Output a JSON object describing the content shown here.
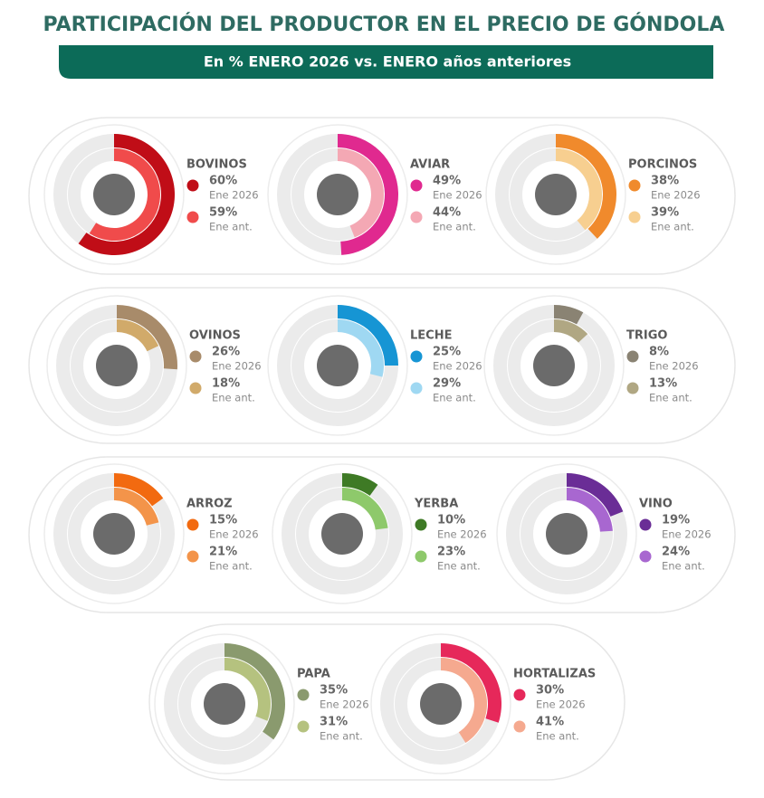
{
  "title": "PARTICIPACIÓN DEL PRODUCTOR EN EL PRECIO DE GÓNDOLA",
  "subtitle": "En % ENERO 2026 vs. ENERO años anteriores",
  "chart_data": [
    {
      "type": "radial",
      "title": "BOVINOS",
      "ylim": [
        0,
        100
      ],
      "series": [
        {
          "name": "Ene 2026",
          "color": "#c00d17",
          "values": [
            60
          ],
          "value_labels": [
            "60%"
          ]
        },
        {
          "name": "Ene ant.",
          "color": "#f04b4b",
          "values": [
            59
          ],
          "value_labels": [
            "59%"
          ]
        }
      ]
    },
    {
      "type": "radial",
      "title": "AVIAR",
      "ylim": [
        0,
        100
      ],
      "series": [
        {
          "name": "Ene 2026",
          "color": "#e0298f",
          "values": [
            49
          ],
          "value_labels": [
            "49%"
          ]
        },
        {
          "name": "Ene ant.",
          "color": "#f4a8b4",
          "values": [
            44
          ],
          "value_labels": [
            "44%"
          ]
        }
      ]
    },
    {
      "type": "radial",
      "title": "PORCINOS",
      "ylim": [
        0,
        100
      ],
      "series": [
        {
          "name": "Ene 2026",
          "color": "#f08a2c",
          "values": [
            38
          ],
          "value_labels": [
            "38%"
          ]
        },
        {
          "name": "Ene ant.",
          "color": "#f7cf90",
          "values": [
            39
          ],
          "value_labels": [
            "39%"
          ]
        }
      ]
    },
    {
      "type": "radial",
      "title": "OVINOS",
      "ylim": [
        0,
        100
      ],
      "series": [
        {
          "name": "Ene 2026",
          "color": "#a88b6a",
          "values": [
            26
          ],
          "value_labels": [
            "26%"
          ]
        },
        {
          "name": "Ene ant.",
          "color": "#d1aa6a",
          "values": [
            18
          ],
          "value_labels": [
            "18%"
          ]
        }
      ]
    },
    {
      "type": "radial",
      "title": "LECHE",
      "ylim": [
        0,
        100
      ],
      "series": [
        {
          "name": "Ene 2026",
          "color": "#1695d4",
          "values": [
            25
          ],
          "value_labels": [
            "25%"
          ]
        },
        {
          "name": "Ene ant.",
          "color": "#9fd8f2",
          "values": [
            29
          ],
          "value_labels": [
            "29%"
          ]
        }
      ]
    },
    {
      "type": "radial",
      "title": "TRIGO",
      "ylim": [
        0,
        100
      ],
      "series": [
        {
          "name": "Ene 2026",
          "color": "#8a8373",
          "values": [
            8
          ],
          "value_labels": [
            "8%"
          ]
        },
        {
          "name": "Ene ant.",
          "color": "#b0a783",
          "values": [
            13
          ],
          "value_labels": [
            "13%"
          ]
        }
      ]
    },
    {
      "type": "radial",
      "title": "ARROZ",
      "ylim": [
        0,
        100
      ],
      "series": [
        {
          "name": "Ene 2026",
          "color": "#f26a10",
          "values": [
            15
          ],
          "value_labels": [
            "15%"
          ]
        },
        {
          "name": "Ene ant.",
          "color": "#f3944a",
          "values": [
            21
          ],
          "value_labels": [
            "21%"
          ]
        }
      ]
    },
    {
      "type": "radial",
      "title": "YERBA",
      "ylim": [
        0,
        100
      ],
      "series": [
        {
          "name": "Ene 2026",
          "color": "#3e7a25",
          "values": [
            10
          ],
          "value_labels": [
            "10%"
          ]
        },
        {
          "name": "Ene ant.",
          "color": "#8ec96b",
          "values": [
            23
          ],
          "value_labels": [
            "23%"
          ]
        }
      ]
    },
    {
      "type": "radial",
      "title": "VINO",
      "ylim": [
        0,
        100
      ],
      "series": [
        {
          "name": "Ene 2026",
          "color": "#6a2d96",
          "values": [
            19
          ],
          "value_labels": [
            "19%"
          ]
        },
        {
          "name": "Ene ant.",
          "color": "#a867d0",
          "values": [
            24
          ],
          "value_labels": [
            "24%"
          ]
        }
      ]
    },
    {
      "type": "radial",
      "title": "PAPA",
      "ylim": [
        0,
        100
      ],
      "series": [
        {
          "name": "Ene 2026",
          "color": "#8a9a6e",
          "values": [
            35
          ],
          "value_labels": [
            "35%"
          ]
        },
        {
          "name": "Ene ant.",
          "color": "#b5c27f",
          "values": [
            31
          ],
          "value_labels": [
            "31%"
          ]
        }
      ]
    },
    {
      "type": "radial",
      "title": "HORTALIZAS",
      "ylim": [
        0,
        100
      ],
      "series": [
        {
          "name": "Ene 2026",
          "color": "#e6285a",
          "values": [
            30
          ],
          "value_labels": [
            "30%"
          ]
        },
        {
          "name": "Ene ant.",
          "color": "#f5a98f",
          "values": [
            41
          ],
          "value_labels": [
            "41%"
          ]
        }
      ]
    }
  ]
}
